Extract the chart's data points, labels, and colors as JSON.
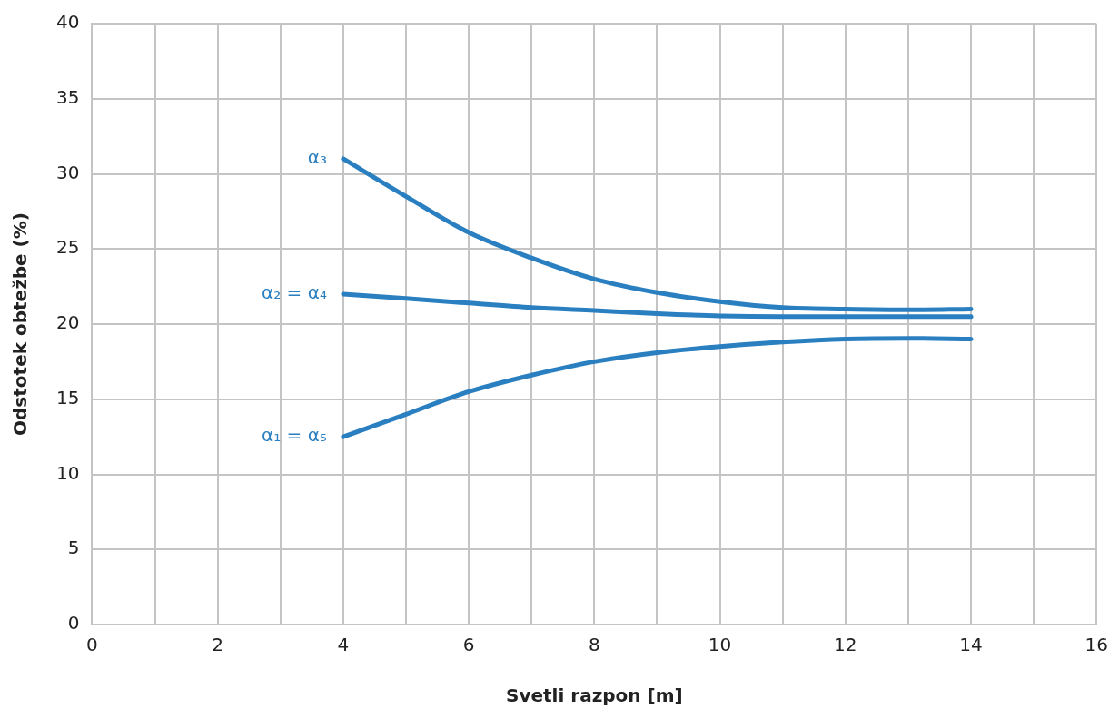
{
  "chart_data": {
    "type": "line",
    "xlabel": "Svetli razpon [m]",
    "ylabel": "Odstotek obtežbe (%)",
    "x": [
      4,
      5,
      6,
      7,
      8,
      9,
      10,
      11,
      12,
      13,
      14
    ],
    "series": [
      {
        "name": "α₃",
        "color": "#2a7fc1",
        "values": [
          31,
          28.5,
          26.1,
          24.4,
          23.0,
          22.1,
          21.5,
          21.1,
          21.0,
          20.95,
          21.0
        ]
      },
      {
        "name": "α₂ = α₄",
        "color": "#2a7fc1",
        "values": [
          22,
          21.7,
          21.4,
          21.1,
          20.9,
          20.7,
          20.55,
          20.5,
          20.5,
          20.5,
          20.5
        ]
      },
      {
        "name": "α₁ = α₅",
        "color": "#2a7fc1",
        "values": [
          12.5,
          14,
          15.5,
          16.6,
          17.5,
          18.1,
          18.5,
          18.8,
          19.0,
          19.05,
          19.0
        ]
      }
    ],
    "xlim": [
      0,
      16
    ],
    "xticks": [
      0,
      {
        "value": 1,
        "label": null
      },
      2,
      {
        "value": 3,
        "label": null
      },
      4,
      {
        "value": 5,
        "label": null
      },
      6,
      {
        "value": 7,
        "label": null
      },
      8,
      {
        "value": 9,
        "label": null
      },
      10,
      {
        "value": 11,
        "label": null
      },
      12,
      {
        "value": 13,
        "label": null
      },
      14,
      {
        "value": 15,
        "label": null
      },
      16
    ],
    "ylim": [
      0,
      40
    ],
    "yticks": [
      0,
      5,
      10,
      15,
      20,
      25,
      30,
      35,
      40
    ],
    "grid": true,
    "legend": false,
    "marker": "none",
    "line_style": "solid"
  }
}
